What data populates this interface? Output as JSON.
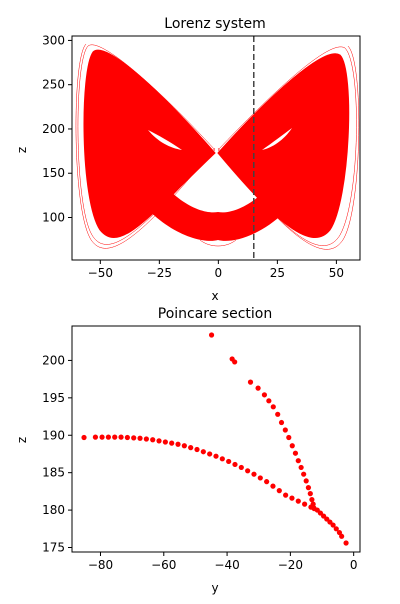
{
  "chart_data": [
    {
      "type": "line",
      "title": "Lorenz system",
      "xlabel": "x",
      "ylabel": "z",
      "xlim": [
        -62,
        60
      ],
      "ylim": [
        52,
        305
      ],
      "xticks": [
        -50,
        -25,
        0,
        25,
        50
      ],
      "yticks": [
        100,
        150,
        200,
        250,
        300
      ],
      "series_color": "#ff0000",
      "vline": {
        "x": 15,
        "style": "dashed",
        "color": "#444444"
      },
      "grid": false
    },
    {
      "type": "scatter",
      "title": "Poincare section",
      "xlabel": "y",
      "ylabel": "z",
      "xlim": [
        -89,
        2
      ],
      "ylim": [
        174.4,
        204.6
      ],
      "xticks": [
        -80,
        -60,
        -40,
        -20,
        0
      ],
      "yticks": [
        175,
        180,
        185,
        190,
        195,
        200
      ],
      "series_color": "#ff0000",
      "grid": false,
      "points": [
        [
          -85.2,
          189.7
        ],
        [
          -81.6,
          189.75
        ],
        [
          -79.5,
          189.75
        ],
        [
          -77.5,
          189.75
        ],
        [
          -75.5,
          189.75
        ],
        [
          -73.5,
          189.75
        ],
        [
          -71.5,
          189.7
        ],
        [
          -69.5,
          189.65
        ],
        [
          -67.5,
          189.6
        ],
        [
          -65.5,
          189.5
        ],
        [
          -63.5,
          189.4
        ],
        [
          -61.5,
          189.25
        ],
        [
          -59.5,
          189.1
        ],
        [
          -57.5,
          188.95
        ],
        [
          -55.5,
          188.8
        ],
        [
          -53.5,
          188.6
        ],
        [
          -51.5,
          188.35
        ],
        [
          -49.5,
          188.1
        ],
        [
          -47.5,
          187.8
        ],
        [
          -45.5,
          187.5
        ],
        [
          -43.5,
          187.2
        ],
        [
          -41.5,
          186.85
        ],
        [
          -39.5,
          186.5
        ],
        [
          -37.5,
          186.1
        ],
        [
          -35.5,
          185.7
        ],
        [
          -33.5,
          185.25
        ],
        [
          -31.5,
          184.8
        ],
        [
          -29.5,
          184.3
        ],
        [
          -27.5,
          183.8
        ],
        [
          -25.5,
          183.2
        ],
        [
          -23.5,
          182.6
        ],
        [
          -21.5,
          182.0
        ],
        [
          -19.5,
          181.6
        ],
        [
          -17.5,
          181.2
        ],
        [
          -15.5,
          180.8
        ],
        [
          -13.5,
          180.4
        ],
        [
          -12.5,
          180.2
        ],
        [
          -11.5,
          180.0
        ],
        [
          -10.5,
          179.6
        ],
        [
          -9.5,
          179.2
        ],
        [
          -8.5,
          178.8
        ],
        [
          -7.5,
          178.4
        ],
        [
          -6.5,
          178.0
        ],
        [
          -5.5,
          177.5
        ],
        [
          -4.5,
          177.0
        ],
        [
          -3.8,
          176.5
        ],
        [
          -2.4,
          175.6
        ],
        [
          -12.6,
          180.3
        ],
        [
          -12.8,
          180.8
        ],
        [
          -13.2,
          181.4
        ],
        [
          -13.7,
          182.2
        ],
        [
          -14.3,
          183.0
        ],
        [
          -15.0,
          183.9
        ],
        [
          -15.8,
          184.8
        ],
        [
          -16.6,
          185.7
        ],
        [
          -17.5,
          186.6
        ],
        [
          -18.4,
          187.6
        ],
        [
          -19.4,
          188.6
        ],
        [
          -20.5,
          189.7
        ],
        [
          -21.6,
          190.7
        ],
        [
          -22.8,
          191.7
        ],
        [
          -24.0,
          192.8
        ],
        [
          -25.4,
          193.8
        ],
        [
          -26.8,
          194.6
        ],
        [
          -28.2,
          195.4
        ],
        [
          -30.2,
          196.3
        ],
        [
          -32.6,
          197.1
        ],
        [
          -38.4,
          200.2
        ],
        [
          -37.6,
          199.8
        ],
        [
          -44.9,
          203.4
        ]
      ]
    }
  ]
}
